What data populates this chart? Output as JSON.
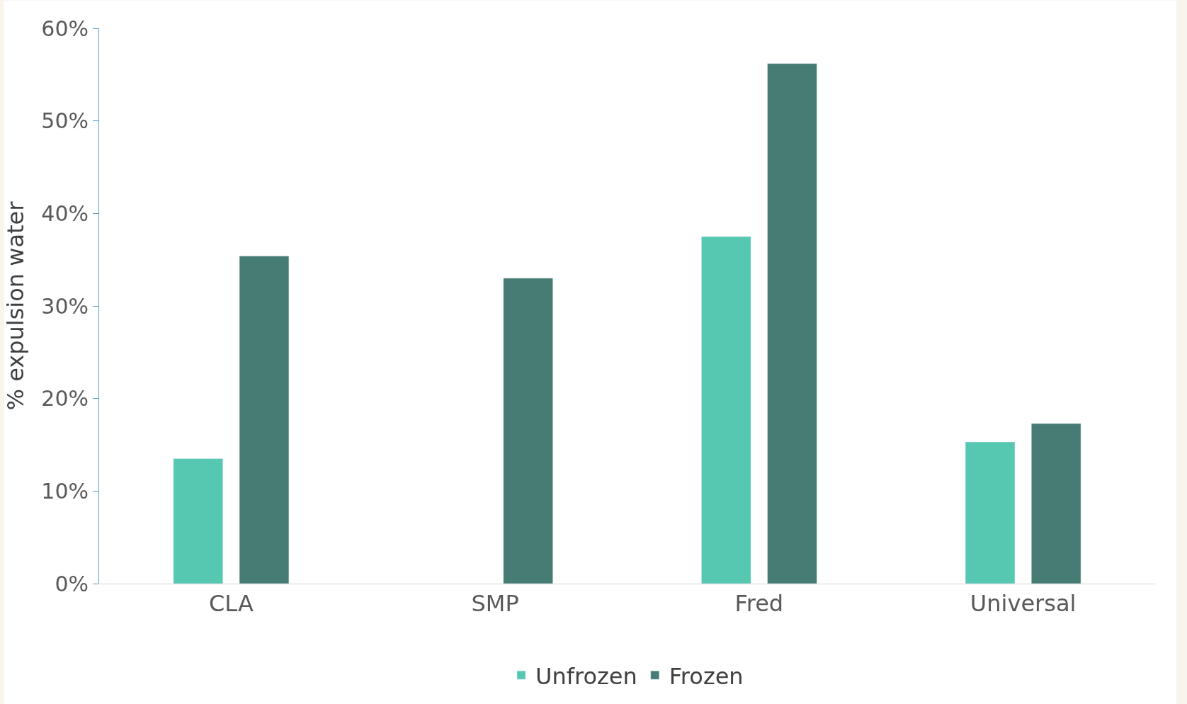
{
  "chart_data": {
    "type": "bar",
    "ylabel": "% expulsion water",
    "categories": [
      "CLA",
      "SMP",
      "Fred",
      "Universal"
    ],
    "series": [
      {
        "name": "Unfrozen",
        "color": "#56c8b2",
        "values": [
          13.5,
          null,
          37.5,
          15.3
        ]
      },
      {
        "name": "Frozen",
        "color": "#467c74",
        "values": [
          35.4,
          33.0,
          56.2,
          17.3
        ]
      }
    ],
    "ylim": [
      0,
      60
    ],
    "yticks": [
      {
        "value": 0,
        "label": "0%"
      },
      {
        "value": 10,
        "label": "10%"
      },
      {
        "value": 20,
        "label": "20%"
      },
      {
        "value": 30,
        "label": "30%"
      },
      {
        "value": 40,
        "label": "40%"
      },
      {
        "value": 50,
        "label": "50%"
      },
      {
        "value": 60,
        "label": "60%"
      }
    ],
    "legend": "bottom"
  }
}
